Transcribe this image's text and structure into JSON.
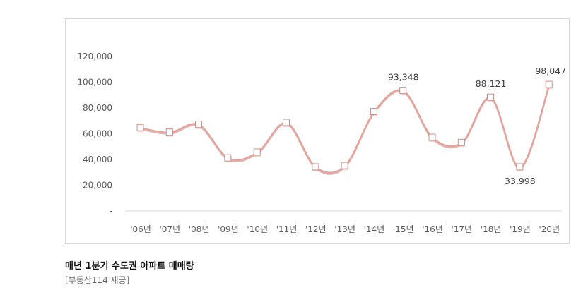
{
  "chart_data": {
    "type": "line",
    "title": "매년 1분기 수도권 아파트 매매량",
    "source": "[부동산114 제공]",
    "categories": [
      "'06년",
      "'07년",
      "'08년",
      "'09년",
      "'10년",
      "'11년",
      "'12년",
      "'13년",
      "'14년",
      "'15년",
      "'16년",
      "'17년",
      "'18년",
      "'19년",
      "'20년"
    ],
    "series": [
      {
        "values": [
          64500,
          61000,
          67000,
          41000,
          45500,
          68500,
          34000,
          35000,
          77000,
          93348,
          57000,
          53000,
          88121,
          33998,
          98047
        ]
      }
    ],
    "data_labels": [
      {
        "index": 9,
        "text": "93,348"
      },
      {
        "index": 12,
        "text": "88,121"
      },
      {
        "index": 13,
        "text": "33,998"
      },
      {
        "index": 14,
        "text": "98,047"
      }
    ],
    "y_ticks": [
      "-",
      "20,000",
      "40,000",
      "60,000",
      "80,000",
      "100,000",
      "120,000"
    ],
    "ylim": [
      0,
      120000
    ],
    "grid": false,
    "colors": {
      "line": "#e8a09a",
      "shadow": "#b5837e",
      "marker_fill": "#ffffff",
      "marker_stroke": "#c9928c"
    }
  }
}
